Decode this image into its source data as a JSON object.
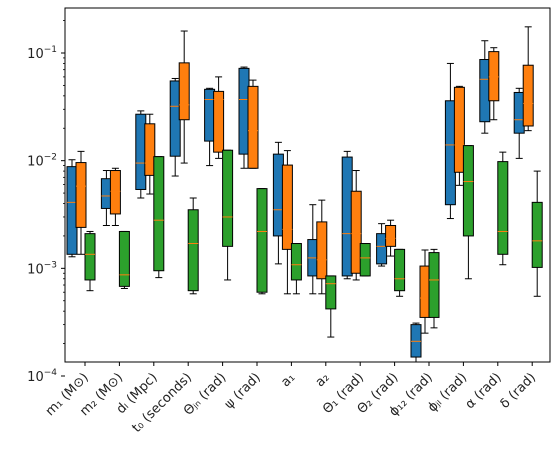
{
  "chart_data": {
    "type": "box",
    "title": "",
    "xlabel": "",
    "ylabel": "",
    "yscale": "log",
    "ylim": [
      0.0001,
      0.25
    ],
    "y_ticks": [
      {
        "value": 0.0001,
        "base": "10",
        "exp": "−4"
      },
      {
        "value": 0.001,
        "base": "10",
        "exp": "−3"
      },
      {
        "value": 0.01,
        "base": "10",
        "exp": "−2"
      },
      {
        "value": 0.1,
        "base": "10",
        "exp": "−1"
      }
    ],
    "categories": [
      "m₁ (M⊙)",
      "m₂ (M⊙)",
      "dₗ (Mpc)",
      "t₀ (seconds)",
      "Θⱼₙ (rad)",
      "ψ (rad)",
      "a₁",
      "a₂",
      "Θ₁ (rad)",
      "Θ₂ (rad)",
      "ϕ₁₂ (rad)",
      "ϕⱼₗ (rad)",
      "α (rad)",
      "δ (rad)"
    ],
    "colors": {
      "series_1": "#1f77b4",
      "series_2": "#ff7f0e",
      "series_3": "#2ca02c",
      "median": "#ff7f0e",
      "whisker": "#000000"
    },
    "series": [
      {
        "color": "#1f77b4",
        "boxes": [
          {
            "whislo": 0.00128,
            "q1": 0.00135,
            "med": 0.0041,
            "q3": 0.0088,
            "whishi": 0.0102
          },
          {
            "whislo": 0.0025,
            "q1": 0.0036,
            "med": 0.0047,
            "q3": 0.0068,
            "whishi": 0.0081
          },
          {
            "whislo": 0.0045,
            "q1": 0.0054,
            "med": 0.0095,
            "q3": 0.027,
            "whishi": 0.029
          },
          {
            "whislo": 0.0072,
            "q1": 0.011,
            "med": 0.032,
            "q3": 0.055,
            "whishi": 0.058
          },
          {
            "whislo": 0.009,
            "q1": 0.0152,
            "med": 0.037,
            "q3": 0.046,
            "whishi": 0.047
          },
          {
            "whislo": 0.0085,
            "q1": 0.0115,
            "med": 0.037,
            "q3": 0.072,
            "whishi": 0.074
          },
          {
            "whislo": 0.0011,
            "q1": 0.002,
            "med": 0.0035,
            "q3": 0.0115,
            "whishi": 0.0148
          },
          {
            "whislo": 0.00058,
            "q1": 0.00085,
            "med": 0.00125,
            "q3": 0.00185,
            "whishi": 0.0039
          },
          {
            "whislo": 0.0008,
            "q1": 0.00085,
            "med": 0.0021,
            "q3": 0.0108,
            "whishi": 0.0122
          },
          {
            "whislo": 0.00105,
            "q1": 0.0011,
            "med": 0.0016,
            "q3": 0.0021,
            "whishi": 0.0026
          },
          {
            "whislo": 0.00013,
            "q1": 0.00015,
            "med": 0.00021,
            "q3": 0.0003,
            "whishi": 0.00031
          },
          {
            "whislo": 0.0029,
            "q1": 0.0039,
            "med": 0.014,
            "q3": 0.036,
            "whishi": 0.08
          },
          {
            "whislo": 0.018,
            "q1": 0.023,
            "med": 0.057,
            "q3": 0.087,
            "whishi": 0.13
          },
          {
            "whislo": 0.0105,
            "q1": 0.018,
            "med": 0.024,
            "q3": 0.043,
            "whishi": 0.047
          }
        ]
      },
      {
        "color": "#ff7f0e",
        "boxes": [
          {
            "whislo": 0.00135,
            "q1": 0.0024,
            "med": 0.0058,
            "q3": 0.0096,
            "whishi": 0.0122
          },
          {
            "whislo": 0.0025,
            "q1": 0.0032,
            "med": 0.0052,
            "q3": 0.0081,
            "whishi": 0.0085
          },
          {
            "whislo": 0.0049,
            "q1": 0.0073,
            "med": 0.0095,
            "q3": 0.022,
            "whishi": 0.027
          },
          {
            "whislo": 0.0095,
            "q1": 0.024,
            "med": 0.033,
            "q3": 0.081,
            "whishi": 0.16
          },
          {
            "whislo": 0.0105,
            "q1": 0.012,
            "med": 0.037,
            "q3": 0.044,
            "whishi": 0.06
          },
          {
            "whislo": 0.0085,
            "q1": 0.0085,
            "med": 0.019,
            "q3": 0.049,
            "whishi": 0.056
          },
          {
            "whislo": 0.00058,
            "q1": 0.0015,
            "med": 0.0023,
            "q3": 0.0091,
            "whishi": 0.0124
          },
          {
            "whislo": 0.00058,
            "q1": 0.0008,
            "med": 0.0012,
            "q3": 0.0027,
            "whishi": 0.0043
          },
          {
            "whislo": 0.00078,
            "q1": 0.0009,
            "med": 0.0021,
            "q3": 0.0052,
            "whishi": 0.0081
          },
          {
            "whislo": 0.0013,
            "q1": 0.0016,
            "med": 0.0019,
            "q3": 0.0025,
            "whishi": 0.0028
          },
          {
            "whislo": 0.00025,
            "q1": 0.00035,
            "med": 0.00053,
            "q3": 0.00105,
            "whishi": 0.00148
          },
          {
            "whislo": 0.0059,
            "q1": 0.0078,
            "med": 0.014,
            "q3": 0.048,
            "whishi": 0.049
          },
          {
            "whislo": 0.024,
            "q1": 0.036,
            "med": 0.06,
            "q3": 0.103,
            "whishi": 0.112
          },
          {
            "whislo": 0.019,
            "q1": 0.021,
            "med": 0.034,
            "q3": 0.077,
            "whishi": 0.175
          }
        ]
      },
      {
        "color": "#2ca02c",
        "boxes": [
          {
            "whislo": 0.00062,
            "q1": 0.00078,
            "med": 0.00135,
            "q3": 0.0021,
            "whishi": 0.0022
          },
          {
            "whislo": 0.00065,
            "q1": 0.00068,
            "med": 0.00087,
            "q3": 0.0022,
            "whishi": 0.0022
          },
          {
            "whislo": 0.00082,
            "q1": 0.00095,
            "med": 0.0028,
            "q3": 0.0109,
            "whishi": 0.0109
          },
          {
            "whislo": 0.00058,
            "q1": 0.00062,
            "med": 0.0017,
            "q3": 0.0035,
            "whishi": 0.0045
          },
          {
            "whislo": 0.00078,
            "q1": 0.0016,
            "med": 0.003,
            "q3": 0.0125,
            "whishi": 0.0125
          },
          {
            "whislo": 0.00058,
            "q1": 0.0006,
            "med": 0.0022,
            "q3": 0.0055,
            "whishi": 0.0055
          },
          {
            "whislo": 0.00058,
            "q1": 0.00078,
            "med": 0.00108,
            "q3": 0.0017,
            "whishi": 0.0017
          },
          {
            "whislo": 0.00023,
            "q1": 0.00042,
            "med": 0.00072,
            "q3": 0.00085,
            "whishi": 0.00085
          },
          {
            "whislo": 0.00085,
            "q1": 0.00085,
            "med": 0.00125,
            "q3": 0.0017,
            "whishi": 0.0017
          },
          {
            "whislo": 0.00055,
            "q1": 0.00062,
            "med": 0.0008,
            "q3": 0.0015,
            "whishi": 0.0015
          },
          {
            "whislo": 0.00028,
            "q1": 0.00035,
            "med": 0.00078,
            "q3": 0.0014,
            "whishi": 0.0015
          },
          {
            "whislo": 0.0008,
            "q1": 0.002,
            "med": 0.0064,
            "q3": 0.0138,
            "whishi": 0.0138
          },
          {
            "whislo": 0.00108,
            "q1": 0.00135,
            "med": 0.0022,
            "q3": 0.0098,
            "whishi": 0.012
          },
          {
            "whislo": 0.00055,
            "q1": 0.00102,
            "med": 0.0018,
            "q3": 0.0041,
            "whishi": 0.008
          }
        ]
      }
    ]
  }
}
